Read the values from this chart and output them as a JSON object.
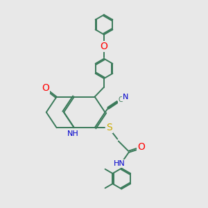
{
  "bg_color": "#e8e8e8",
  "bond_color": "#3a7a5a",
  "bond_width": 1.4,
  "atom_colors": {
    "O": "#ff0000",
    "N": "#0000cc",
    "S": "#ccaa00",
    "C": "#3a7a5a",
    "H": "#3a7a5a"
  },
  "font_size": 8,
  "fig_size": [
    3.0,
    3.0
  ],
  "dpi": 100
}
